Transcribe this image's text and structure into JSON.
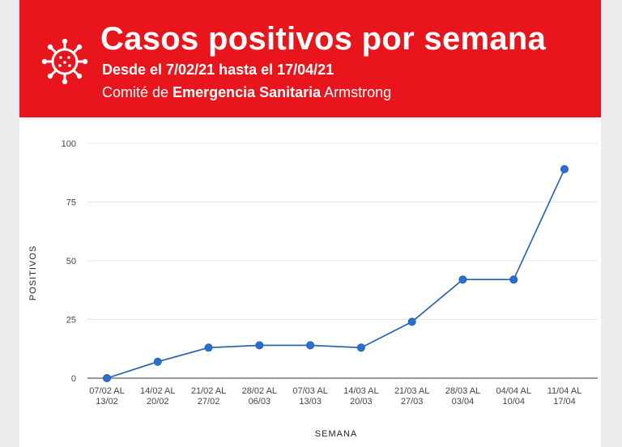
{
  "header": {
    "title": "Casos positivos por semana",
    "subtitle": "Desde el 7/02/21 hasta el 17/04/21",
    "committee_prefix": "Comité de",
    "committee_bold": "Emergencia Sanitaria",
    "committee_suffix": "Armstrong",
    "icon": "virus-icon"
  },
  "colors": {
    "banner": "#e8161c",
    "line": "#1f5fae",
    "marker": "#2a6ed4"
  },
  "chart_data": {
    "type": "line",
    "title": "Casos positivos por semana",
    "xlabel": "SEMANA",
    "ylabel": "POSITIVOS",
    "ylim": [
      0,
      100
    ],
    "yticks": [
      0,
      25,
      50,
      75,
      100
    ],
    "grid": true,
    "categories": [
      [
        "07/02 AL",
        "13/02"
      ],
      [
        "14/02 AL",
        "20/02"
      ],
      [
        "21/02 AL",
        "27/02"
      ],
      [
        "28/02 AL",
        "06/03"
      ],
      [
        "07/03 AL",
        "13/03"
      ],
      [
        "14/03 AL",
        "20/03"
      ],
      [
        "21/03 AL",
        "27/03"
      ],
      [
        "28/03 AL",
        "03/04"
      ],
      [
        "04/04 AL",
        "10/04"
      ],
      [
        "11/04 AL",
        "17/04"
      ]
    ],
    "values": [
      0,
      7,
      13,
      14,
      14,
      13,
      24,
      42,
      42,
      89
    ]
  }
}
